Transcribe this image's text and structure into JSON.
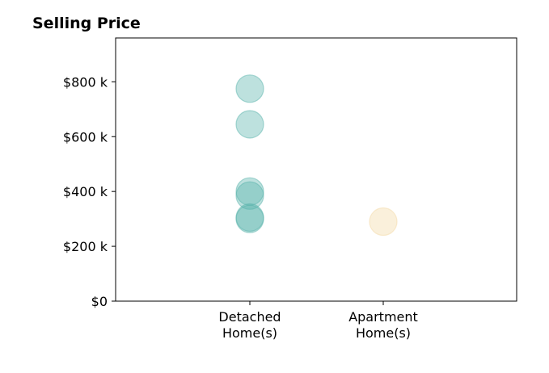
{
  "chart_data": {
    "type": "scatter",
    "title": "Selling Price",
    "xlabel": "",
    "ylabel": "",
    "categories": [
      "Detached\nHome(s)",
      "Apartment\nHome(s)"
    ],
    "ylim": [
      0,
      960000
    ],
    "yticks": [
      {
        "value": 0,
        "label": "$0"
      },
      {
        "value": 200000,
        "label": "$200 k"
      },
      {
        "value": 400000,
        "label": "$400 k"
      },
      {
        "value": 600000,
        "label": "$600 k"
      },
      {
        "value": 800000,
        "label": "$800 k"
      }
    ],
    "grid": false,
    "series": [
      {
        "category": "Detached\nHome(s)",
        "color": "#5ab4ac",
        "values": [
          775000,
          645000,
          400000,
          385000,
          305000,
          300000
        ]
      },
      {
        "category": "Apartment\nHome(s)",
        "color": "#f3d9a5",
        "values": [
          290000
        ]
      }
    ]
  }
}
